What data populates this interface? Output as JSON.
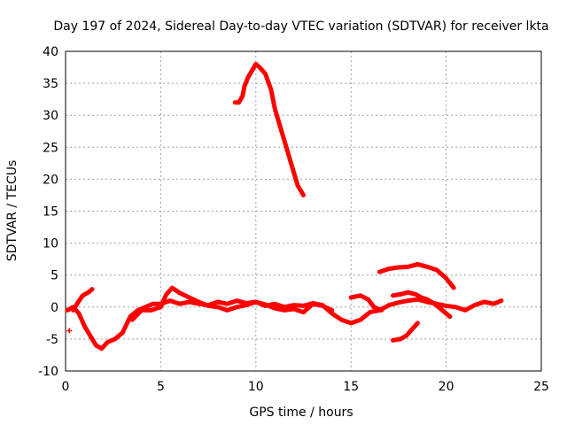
{
  "chart_data": {
    "type": "scatter",
    "title": "Day 197 of 2024, Sidereal Day-to-day VTEC variation (SDTVAR) for receiver lkta",
    "xlabel": "GPS time / hours",
    "ylabel": "SDTVAR / TECUs",
    "xlim": [
      0,
      25
    ],
    "ylim": [
      -10,
      40
    ],
    "xticks": [
      0,
      5,
      10,
      15,
      20,
      25
    ],
    "yticks": [
      -10,
      -5,
      0,
      5,
      10,
      15,
      20,
      25,
      30,
      35,
      40
    ],
    "grid": true,
    "marker": "+",
    "color": "#ff0000",
    "series": [
      {
        "name": "trace-1",
        "x": [
          0.1,
          0.4,
          0.7,
          1.0,
          1.3,
          1.6,
          1.9,
          2.2,
          2.6,
          3.0,
          3.4,
          3.8,
          4.2,
          4.6,
          5.0,
          5.5,
          6.0,
          6.5,
          7.0,
          7.5,
          8.0,
          8.5,
          9.0,
          9.5,
          10.0,
          10.5,
          11.0,
          11.5,
          12.0,
          12.5,
          13.0,
          13.5,
          14.0,
          14.5,
          15.0,
          15.5,
          16.0,
          16.5,
          17.0,
          17.5,
          18.0,
          18.5,
          19.0,
          19.5,
          20.0,
          20.5,
          21.0,
          21.5,
          22.0,
          22.5,
          22.9
        ],
        "y": [
          -0.5,
          0,
          -1,
          -3,
          -4.5,
          -6,
          -6.5,
          -5.5,
          -5,
          -4,
          -1.5,
          -0.5,
          0,
          0.5,
          0.5,
          1,
          0.5,
          0.8,
          0.5,
          0.3,
          0.8,
          0.5,
          1,
          0.6,
          0.8,
          0.2,
          0.5,
          0,
          0.3,
          0.2,
          0.6,
          0.3,
          -1,
          -2,
          -2.5,
          -2,
          -0.8,
          -0.5,
          0.3,
          0.7,
          1,
          1.2,
          0.8,
          0.5,
          0.2,
          0,
          -0.5,
          0.3,
          0.8,
          0.5,
          1
        ]
      },
      {
        "name": "trace-2",
        "x": [
          0.4,
          0.6,
          0.9,
          1.2,
          1.4
        ],
        "y": [
          -0.5,
          0.5,
          1.8,
          2.3,
          2.8
        ]
      },
      {
        "name": "trace-3",
        "x": [
          3.5,
          4.0,
          4.5,
          5.0,
          5.3,
          5.6,
          6.0,
          6.5,
          7.0,
          7.5,
          8.0,
          8.5,
          9.0,
          9.5,
          10.0,
          10.5,
          11.0,
          11.5,
          12.0,
          12.5,
          13.0,
          13.5,
          14.0
        ],
        "y": [
          -2,
          -0.5,
          -0.5,
          0,
          2,
          3,
          2.2,
          1.5,
          0.8,
          0.2,
          0,
          -0.5,
          0,
          0.3,
          0.8,
          0.4,
          -0.2,
          -0.5,
          -0.3,
          -0.8,
          0.5,
          0.2,
          -0.5
        ]
      },
      {
        "name": "trace-4",
        "x": [
          15.0,
          15.5,
          15.9,
          16.2,
          16.6
        ],
        "y": [
          1.5,
          1.8,
          1.2,
          0,
          -0.5
        ]
      },
      {
        "name": "trace-5",
        "x": [
          16.5,
          17.0,
          17.5,
          18.0,
          18.5,
          19.0,
          19.5,
          20.0,
          20.4
        ],
        "y": [
          5.5,
          6,
          6.2,
          6.3,
          6.7,
          6.3,
          5.8,
          4.5,
          3.0
        ]
      },
      {
        "name": "trace-6",
        "x": [
          17.2,
          17.6,
          18.0,
          18.4,
          18.7,
          19.0,
          19.4,
          19.8,
          20.2
        ],
        "y": [
          1.8,
          2.0,
          2.3,
          2.0,
          1.5,
          1.2,
          0.5,
          -0.5,
          -1.5
        ]
      },
      {
        "name": "trace-7",
        "x": [
          17.2,
          17.6,
          17.9,
          18.2,
          18.5
        ],
        "y": [
          -5.2,
          -5.0,
          -4.5,
          -3.5,
          -2.5
        ]
      },
      {
        "name": "trace-8",
        "x": [
          8.9,
          9.1,
          9.3,
          9.4,
          9.6,
          9.8,
          10.0,
          10.2,
          10.5,
          10.8,
          11.0,
          11.3,
          11.6,
          11.9,
          12.2,
          12.5
        ],
        "y": [
          32,
          32,
          33,
          34.5,
          36,
          37,
          38,
          37.5,
          36.5,
          34,
          31,
          28,
          25,
          22,
          19,
          17.5
        ]
      },
      {
        "name": "isolated-point",
        "x": [
          0.2
        ],
        "y": [
          -3.7
        ]
      }
    ]
  }
}
